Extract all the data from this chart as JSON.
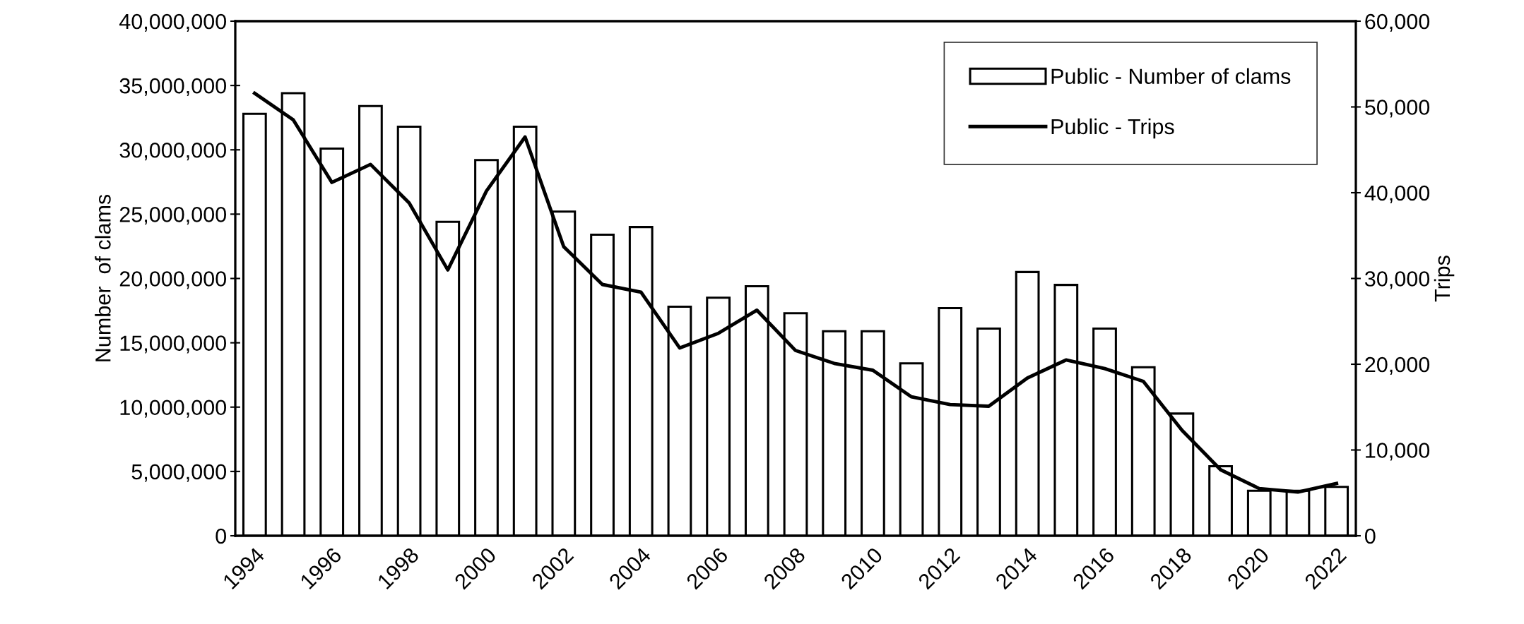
{
  "chart_data": {
    "type": "bar",
    "categories": [
      "1994",
      null,
      "1996",
      null,
      "1998",
      null,
      "2000",
      null,
      "2002",
      null,
      "2004",
      null,
      "2006",
      null,
      "2008",
      null,
      "2010",
      null,
      "2012",
      null,
      "2014",
      null,
      "2016",
      null,
      "2018",
      null,
      "2020",
      null,
      "2022"
    ],
    "series": [
      {
        "name": "Public - Number of clams",
        "color": "#ffffff",
        "values": [
          32800000,
          34400000,
          30100000,
          33400000,
          31800000,
          24400000,
          29200000,
          31800000,
          25200000,
          23400000,
          24000000,
          17800000,
          18500000,
          19400000,
          17300000,
          15900000,
          15900000,
          13400000,
          17700000,
          16100000,
          20500000,
          19500000,
          16100000,
          13100000,
          9500000,
          5400000,
          3500000,
          3500000,
          3800000
        ]
      },
      {
        "name": "Public - Trips",
        "type": "line",
        "axis": "y2",
        "color": "#000000",
        "values": [
          51600,
          48500,
          41200,
          43300,
          38800,
          31000,
          40200,
          46500,
          33700,
          29300,
          28400,
          21900,
          23600,
          26300,
          21600,
          20100,
          19300,
          16200,
          15300,
          15100,
          18400,
          20500,
          19500,
          18000,
          12300,
          7700,
          5500,
          5100,
          6100
        ]
      }
    ],
    "ylabel": "Number  of clams",
    "y2label": "Trips",
    "ylim": [
      0,
      40000000
    ],
    "yticks": [
      {
        "value": 0,
        "label": "0"
      },
      {
        "value": 5000000,
        "label": "5,000,000"
      },
      {
        "value": 10000000,
        "label": "10,000,000"
      },
      {
        "value": 15000000,
        "label": "15,000,000"
      },
      {
        "value": 20000000,
        "label": "20,000,000"
      },
      {
        "value": 25000000,
        "label": "25,000,000"
      },
      {
        "value": 30000000,
        "label": "30,000,000"
      },
      {
        "value": 35000000,
        "label": "35,000,000"
      },
      {
        "value": 40000000,
        "label": "40,000,000"
      }
    ],
    "y2lim": [
      0,
      60000
    ],
    "y2ticks": [
      {
        "value": 0,
        "label": "0"
      },
      {
        "value": 10000,
        "label": "10,000"
      },
      {
        "value": 20000,
        "label": "20,000"
      },
      {
        "value": 30000,
        "label": "30,000"
      },
      {
        "value": 40000,
        "label": "40,000"
      },
      {
        "value": 50000,
        "label": "50,000"
      },
      {
        "value": 60000,
        "label": "60,000"
      }
    ],
    "legend": "top right",
    "grid": false
  }
}
